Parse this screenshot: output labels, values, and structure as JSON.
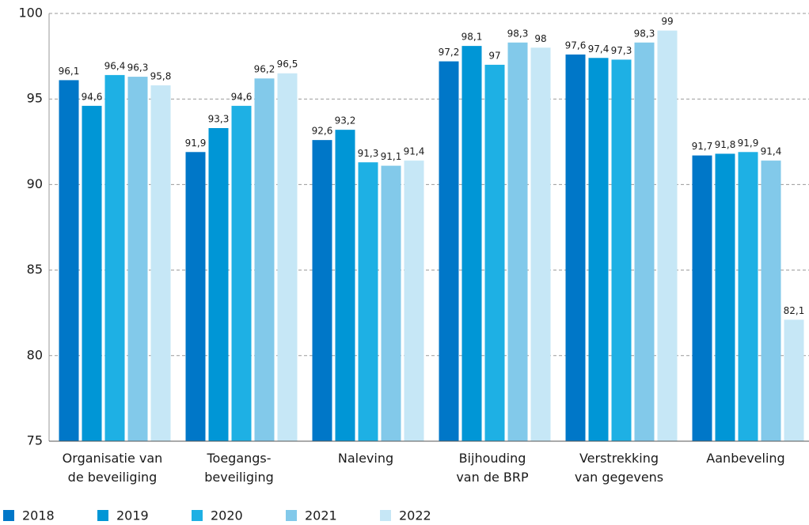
{
  "chart_data": {
    "type": "bar",
    "categories": [
      "Organisatie van\nde beveiliging",
      "Toegangs-\nbeveiliging",
      "Naleving",
      "Bijhouding\nvan de BRP",
      "Verstrekking\nvan gegevens",
      "Aanbeveling"
    ],
    "series": [
      {
        "name": "2018",
        "color": "#0077c8",
        "values": [
          96.1,
          91.9,
          92.6,
          97.2,
          97.6,
          91.7
        ],
        "value_labels": [
          "96,1",
          "91,9",
          "92,6",
          "97,2",
          "97,6",
          "91,7"
        ]
      },
      {
        "name": "2019",
        "color": "#0096d6",
        "values": [
          94.6,
          93.3,
          93.2,
          98.1,
          97.4,
          91.8
        ],
        "value_labels": [
          "94,6",
          "93,3",
          "93,2",
          "98,1",
          "97,4",
          "91,8"
        ]
      },
      {
        "name": "2020",
        "color": "#1eb0e4",
        "values": [
          96.4,
          94.6,
          91.3,
          97,
          97.3,
          91.9
        ],
        "value_labels": [
          "96,4",
          "94,6",
          "91,3",
          "97",
          "97,3",
          "91,9"
        ]
      },
      {
        "name": "2021",
        "color": "#82c9ea",
        "values": [
          96.3,
          96.2,
          91.1,
          98.3,
          98.3,
          91.4
        ],
        "value_labels": [
          "96,3",
          "96,2",
          "91,1",
          "98,3",
          "98,3",
          "91,4"
        ]
      },
      {
        "name": "2022",
        "color": "#c6e7f6",
        "values": [
          95.8,
          96.5,
          91.4,
          98,
          99,
          82.1
        ],
        "value_labels": [
          "95,8",
          "96,5",
          "91,4",
          "98",
          "99",
          "82,1"
        ]
      }
    ],
    "ylim": [
      75,
      100
    ],
    "yticks": [
      75,
      80,
      85,
      90,
      95,
      100
    ],
    "grid": true,
    "legend": "bottom"
  }
}
